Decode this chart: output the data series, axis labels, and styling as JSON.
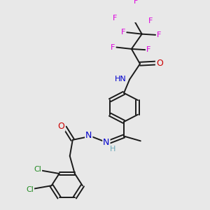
{
  "bg_color": "#e8e8e8",
  "bond_color": "#1a1a1a",
  "atom_colors": {
    "F": "#dd00dd",
    "Cl": "#228B22",
    "N": "#0000cc",
    "O": "#cc0000",
    "H": "#6aa8b8",
    "C": "#1a1a1a"
  },
  "figsize": [
    3.0,
    3.0
  ],
  "dpi": 100
}
